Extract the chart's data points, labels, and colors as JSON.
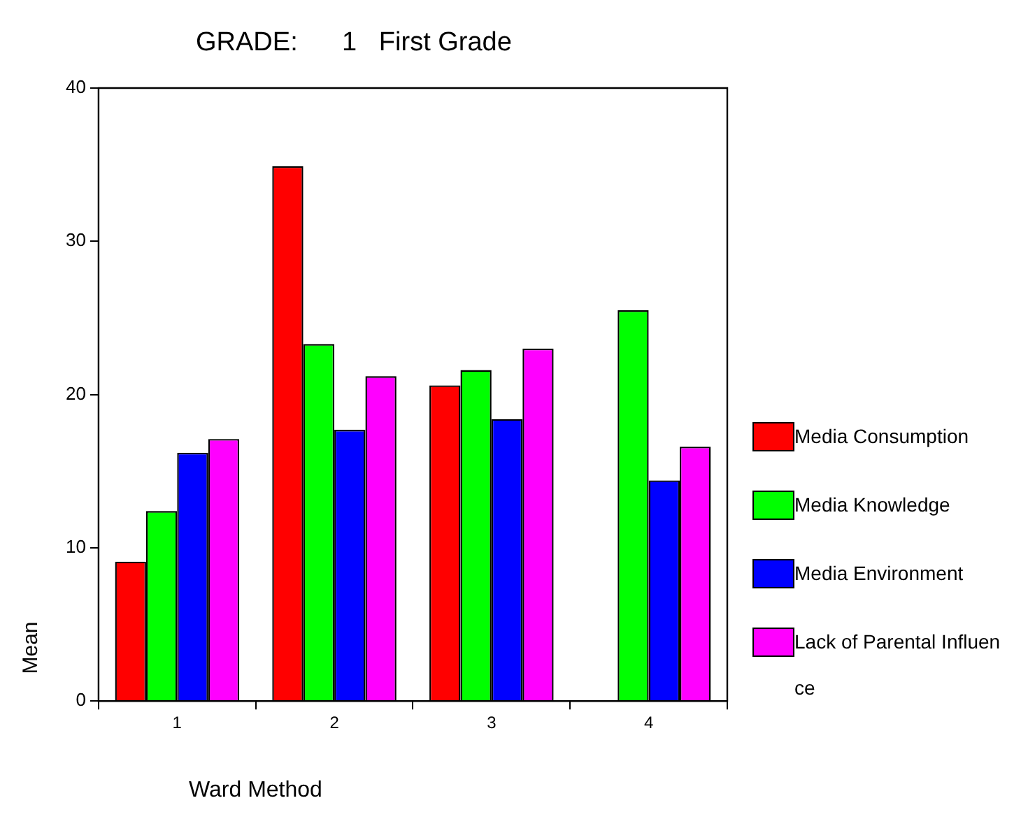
{
  "chart_data": {
    "type": "bar",
    "title": "GRADE:      1   First Grade",
    "xlabel": "Ward Method",
    "ylabel": "Mean",
    "categories": [
      "1",
      "2",
      "3",
      "4"
    ],
    "series": [
      {
        "name": "Media Consumption",
        "color": "#ff0000",
        "values": [
          9.1,
          34.9,
          20.6,
          0
        ]
      },
      {
        "name": "Media Knowledge",
        "color": "#00ff00",
        "values": [
          12.4,
          23.3,
          21.6,
          25.5
        ]
      },
      {
        "name": "Media Environment",
        "color": "#0000ff",
        "values": [
          16.2,
          17.7,
          18.4,
          14.4
        ]
      },
      {
        "name": "Lack of Parental Influence",
        "color": "#ff00ff",
        "values": [
          17.1,
          21.2,
          23.0,
          16.6
        ]
      }
    ],
    "ylim": [
      0,
      40
    ],
    "yticks": [
      0,
      10,
      20,
      30,
      40
    ],
    "grid": false,
    "legend": "right"
  }
}
